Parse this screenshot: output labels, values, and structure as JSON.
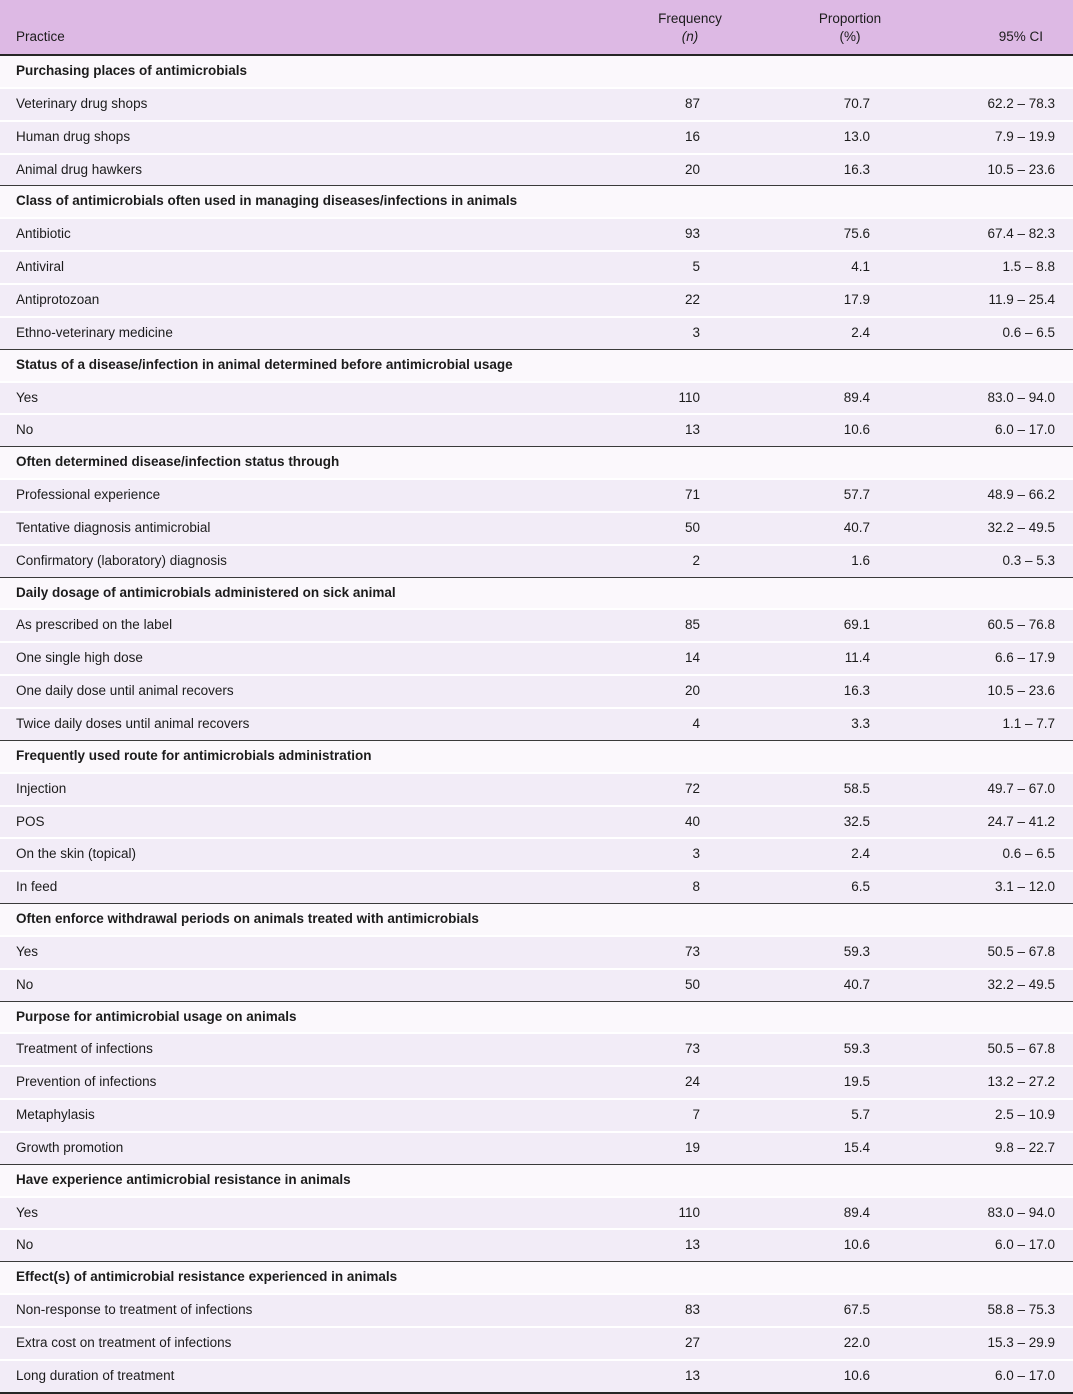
{
  "colors": {
    "header_bg": "#ddb9e4",
    "data_row_bg": "#f2ecf7",
    "section_row_bg": "#fbf8fc",
    "rule_dark": "#262626",
    "text": "#1c1c1c"
  },
  "table": {
    "columns": {
      "practice": "Practice",
      "frequency_line1": "Frequency",
      "frequency_line2": "(n)",
      "proportion_line1": "Proportion",
      "proportion_line2": "(%)",
      "ci": "95% CI"
    },
    "sections": [
      {
        "header": "Purchasing places of antimicrobials",
        "rows": [
          {
            "practice": "Veterinary drug shops",
            "n": "87",
            "pct": "70.7",
            "ci": "62.2 – 78.3"
          },
          {
            "practice": "Human drug shops",
            "n": "16",
            "pct": "13.0",
            "ci": "7.9 – 19.9"
          },
          {
            "practice": "Animal drug hawkers",
            "n": "20",
            "pct": "16.3",
            "ci": "10.5 – 23.6"
          }
        ]
      },
      {
        "header": "Class of antimicrobials often used in managing diseases/infections in animals",
        "rows": [
          {
            "practice": "Antibiotic",
            "n": "93",
            "pct": "75.6",
            "ci": "67.4 – 82.3"
          },
          {
            "practice": "Antiviral",
            "n": "5",
            "pct": "4.1",
            "ci": "1.5 – 8.8"
          },
          {
            "practice": "Antiprotozoan",
            "n": "22",
            "pct": "17.9",
            "ci": "11.9 – 25.4"
          },
          {
            "practice": "Ethno-veterinary medicine",
            "n": "3",
            "pct": "2.4",
            "ci": "0.6 – 6.5"
          }
        ]
      },
      {
        "header": "Status of a disease/infection in animal determined before antimicrobial usage",
        "rows": [
          {
            "practice": "Yes",
            "n": "110",
            "pct": "89.4",
            "ci": "83.0 – 94.0"
          },
          {
            "practice": "No",
            "n": "13",
            "pct": "10.6",
            "ci": "6.0 – 17.0"
          }
        ]
      },
      {
        "header": "Often determined disease/infection status through",
        "rows": [
          {
            "practice": "Professional experience",
            "n": "71",
            "pct": "57.7",
            "ci": "48.9 – 66.2"
          },
          {
            "practice": "Tentative diagnosis antimicrobial",
            "n": "50",
            "pct": "40.7",
            "ci": "32.2 – 49.5"
          },
          {
            "practice": "Confirmatory (laboratory) diagnosis",
            "n": "2",
            "pct": "1.6",
            "ci": "0.3 – 5.3"
          }
        ]
      },
      {
        "header": "Daily dosage of antimicrobials administered on sick animal",
        "rows": [
          {
            "practice": "As prescribed on the label",
            "n": "85",
            "pct": "69.1",
            "ci": "60.5 – 76.8"
          },
          {
            "practice": "One single high dose",
            "n": "14",
            "pct": "11.4",
            "ci": "6.6 – 17.9"
          },
          {
            "practice": "One daily dose until animal recovers",
            "n": "20",
            "pct": "16.3",
            "ci": "10.5 – 23.6"
          },
          {
            "practice": "Twice daily doses until animal recovers",
            "n": "4",
            "pct": "3.3",
            "ci": "1.1 – 7.7"
          }
        ]
      },
      {
        "header": "Frequently used route for antimicrobials administration",
        "rows": [
          {
            "practice": "Injection",
            "n": "72",
            "pct": "58.5",
            "ci": "49.7 – 67.0"
          },
          {
            "practice": "POS",
            "n": "40",
            "pct": "32.5",
            "ci": "24.7 – 41.2"
          },
          {
            "practice": "On the skin (topical)",
            "n": "3",
            "pct": "2.4",
            "ci": "0.6 – 6.5"
          },
          {
            "practice": "In feed",
            "n": "8",
            "pct": "6.5",
            "ci": "3.1 – 12.0"
          }
        ]
      },
      {
        "header": "Often enforce withdrawal periods on animals treated with antimicrobials",
        "rows": [
          {
            "practice": "Yes",
            "n": "73",
            "pct": "59.3",
            "ci": "50.5 – 67.8"
          },
          {
            "practice": "No",
            "n": "50",
            "pct": "40.7",
            "ci": "32.2 – 49.5"
          }
        ]
      },
      {
        "header": "Purpose for antimicrobial usage on animals",
        "rows": [
          {
            "practice": "Treatment of infections",
            "n": "73",
            "pct": "59.3",
            "ci": "50.5 – 67.8"
          },
          {
            "practice": "Prevention of infections",
            "n": "24",
            "pct": "19.5",
            "ci": "13.2 – 27.2"
          },
          {
            "practice": "Metaphylasis",
            "n": "7",
            "pct": "5.7",
            "ci": "2.5 – 10.9"
          },
          {
            "practice": "Growth promotion",
            "n": "19",
            "pct": "15.4",
            "ci": "9.8 – 22.7"
          }
        ]
      },
      {
        "header": "Have experience antimicrobial resistance in animals",
        "rows": [
          {
            "practice": "Yes",
            "n": "110",
            "pct": "89.4",
            "ci": "83.0 – 94.0"
          },
          {
            "practice": "No",
            "n": "13",
            "pct": "10.6",
            "ci": "6.0 – 17.0"
          }
        ]
      },
      {
        "header": "Effect(s) of antimicrobial resistance experienced in animals",
        "rows": [
          {
            "practice": "Non-response to treatment of infections",
            "n": "83",
            "pct": "67.5",
            "ci": "58.8 – 75.3"
          },
          {
            "practice": "Extra cost on treatment of infections",
            "n": "27",
            "pct": "22.0",
            "ci": "15.3 – 29.9"
          },
          {
            "practice": "Long duration of treatment",
            "n": "13",
            "pct": "10.6",
            "ci": "6.0 – 17.0"
          }
        ]
      }
    ]
  }
}
